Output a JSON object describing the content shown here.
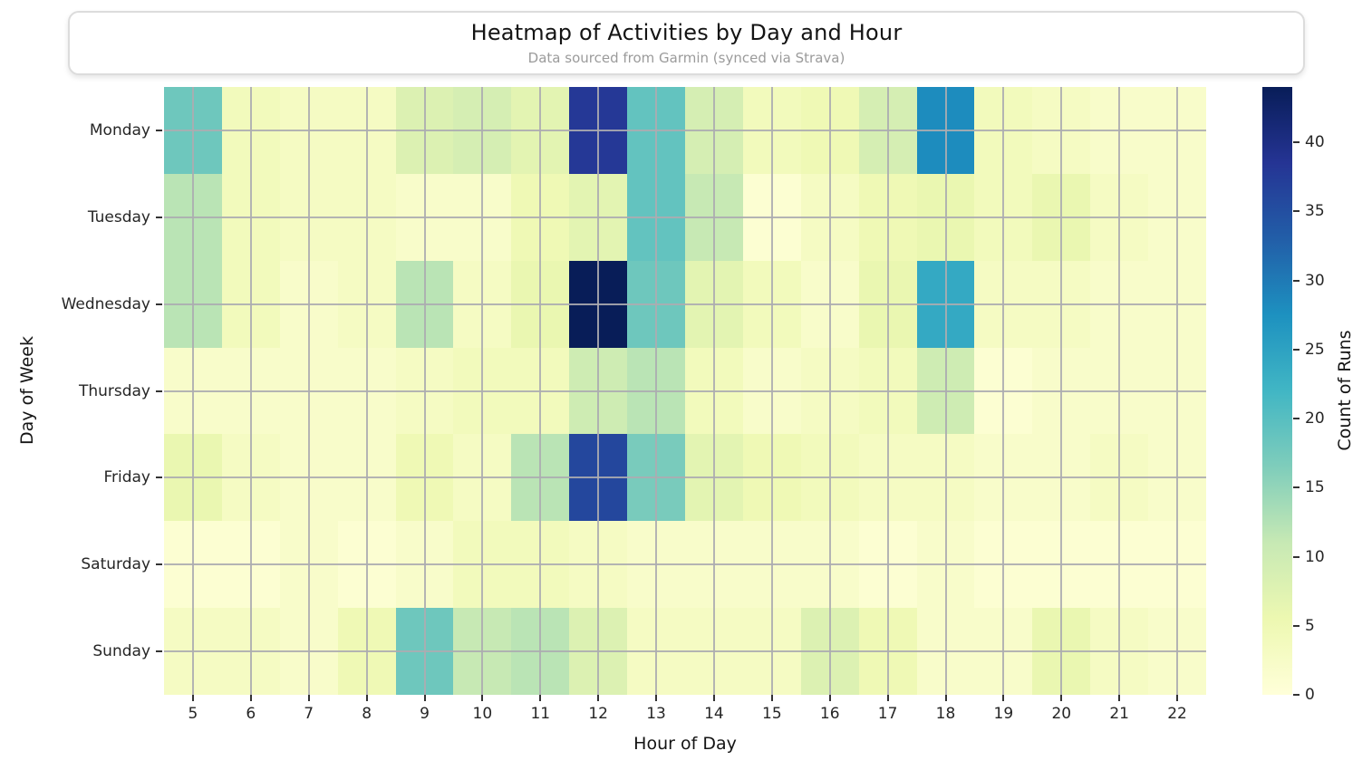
{
  "header": {
    "title": "Heatmap of Activities by Day and Hour",
    "subtitle": "Data sourced from Garmin (synced via Strava)"
  },
  "chart_data": {
    "type": "heatmap",
    "title": "Heatmap of Activities by Day and Hour",
    "subtitle": "Data sourced from Garmin (synced via Strava)",
    "xlabel": "Hour of Day",
    "ylabel": "Day of Week",
    "colorbar_label": "Count of Runs",
    "colormap": "YlGnBu",
    "vmin": 0,
    "vmax": 44,
    "grid": true,
    "colorbar_ticks": [
      0,
      5,
      10,
      15,
      20,
      25,
      30,
      35,
      40
    ],
    "hours": [
      5,
      6,
      7,
      8,
      9,
      10,
      11,
      12,
      13,
      14,
      15,
      16,
      17,
      18,
      19,
      20,
      21,
      22
    ],
    "days": [
      "Monday",
      "Tuesday",
      "Wednesday",
      "Thursday",
      "Friday",
      "Saturday",
      "Sunday"
    ],
    "values": [
      [
        18,
        4,
        3,
        3,
        8,
        9,
        7,
        38,
        19,
        9,
        4,
        5,
        9,
        28,
        4,
        3,
        2,
        2
      ],
      [
        12,
        4,
        3,
        3,
        2,
        2,
        5,
        7,
        19,
        11,
        1,
        3,
        5,
        6,
        4,
        6,
        3,
        2
      ],
      [
        12,
        4,
        2,
        3,
        12,
        3,
        6,
        44,
        18,
        7,
        4,
        2,
        6,
        24,
        3,
        3,
        2,
        2
      ],
      [
        2,
        2,
        2,
        2,
        3,
        4,
        4,
        10,
        12,
        4,
        2,
        3,
        4,
        10,
        1,
        2,
        2,
        2
      ],
      [
        6,
        3,
        2,
        2,
        5,
        3,
        12,
        36,
        17,
        7,
        5,
        4,
        3,
        3,
        2,
        2,
        3,
        2
      ],
      [
        1,
        1,
        2,
        1,
        2,
        4,
        4,
        3,
        2,
        2,
        2,
        2,
        1,
        2,
        1,
        1,
        1,
        1
      ],
      [
        3,
        3,
        2,
        5,
        18,
        11,
        12,
        8,
        3,
        3,
        3,
        8,
        5,
        2,
        2,
        6,
        3,
        2
      ]
    ],
    "colormap_stops": [
      {
        "t": 0.0,
        "color": "#ffffd9"
      },
      {
        "t": 0.125,
        "color": "#edf8b1"
      },
      {
        "t": 0.25,
        "color": "#c7e9b4"
      },
      {
        "t": 0.375,
        "color": "#7fcdbb"
      },
      {
        "t": 0.5,
        "color": "#41b6c4"
      },
      {
        "t": 0.625,
        "color": "#1d91c0"
      },
      {
        "t": 0.75,
        "color": "#225ea8"
      },
      {
        "t": 0.875,
        "color": "#253494"
      },
      {
        "t": 1.0,
        "color": "#081d58"
      }
    ]
  }
}
